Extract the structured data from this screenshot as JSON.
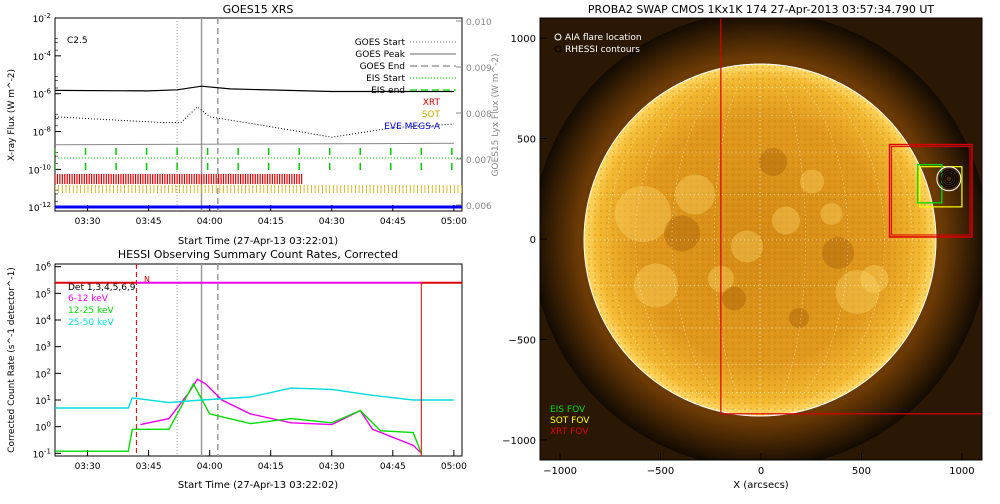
{
  "chart_data": [
    {
      "type": "line",
      "title": "GOES15 XRS",
      "xlabel": "Start Time (27-Apr-13 03:22:01)",
      "ylabel": "X-ray Flux (W m^-2)",
      "ylabel_right": "GOES15 Lyx Flux (W m^-2)",
      "x_ticks": [
        "03:30",
        "03:45",
        "04:00",
        "04:15",
        "04:30",
        "04:45",
        "05:00"
      ],
      "y_ticks": [
        "10^-12",
        "10^-10",
        "10^-8",
        "10^-6",
        "10^-4",
        "10^-2"
      ],
      "y_ticks_right": [
        "0.006",
        "0.007",
        "0.008",
        "0.009",
        "0.010"
      ],
      "flare_class": "C2.5",
      "legend": [
        {
          "label": "GOES Start",
          "color": "#888888",
          "style": "dotted"
        },
        {
          "label": "GOES Peak",
          "color": "#888888",
          "style": "solid"
        },
        {
          "label": "GOES End",
          "color": "#888888",
          "style": "dashed"
        },
        {
          "label": "EIS Start",
          "color": "#00dd00",
          "style": "dotted"
        },
        {
          "label": "EIS end",
          "color": "#00dd00",
          "style": "dashed"
        },
        {
          "label": "XRT",
          "color": "#dd0000",
          "style": "text"
        },
        {
          "label": "SOT",
          "color": "#ccaa00",
          "style": "text"
        },
        {
          "label": "EVE MEGS-A",
          "color": "#0000ee",
          "style": "text"
        }
      ],
      "events": {
        "goes_start": "03:52",
        "goes_peak": "03:58",
        "goes_end": "04:02"
      },
      "series": [
        {
          "name": "1-8 A",
          "color": "#000000",
          "points": [
            [
              "03:22",
              1.5e-06
            ],
            [
              "03:45",
              1.4e-06
            ],
            [
              "03:52",
              1.6e-06
            ],
            [
              "03:58",
              2.5e-06
            ],
            [
              "04:05",
              1.8e-06
            ],
            [
              "04:30",
              1.3e-06
            ],
            [
              "05:00",
              1.3e-06
            ]
          ]
        },
        {
          "name": "0.5-4 A",
          "color": "#000000",
          "points": [
            [
              "03:22",
              6e-08
            ],
            [
              "03:48",
              3e-08
            ],
            [
              "03:53",
              3e-08
            ],
            [
              "03:57",
              2e-07
            ],
            [
              "04:00",
              6e-08
            ],
            [
              "04:15",
              1.8e-08
            ],
            [
              "04:30",
              5e-09
            ],
            [
              "04:45",
              1.6e-08
            ],
            [
              "05:00",
              2.5e-08
            ]
          ]
        },
        {
          "name": "Lyx",
          "color": "#888888",
          "points": [
            [
              "03:22",
              2e-09
            ],
            [
              "05:00",
              2.4e-09
            ]
          ]
        }
      ]
    },
    {
      "type": "line",
      "title": "HESSI Observing Summary Count Rates, Corrected",
      "xlabel": "Start Time (27-Apr-13 03:22:02)",
      "ylabel": "Corrected Count Rate (s^-1 detector^-1)",
      "x_ticks": [
        "03:30",
        "03:45",
        "04:00",
        "04:15",
        "04:30",
        "04:45",
        "05:00"
      ],
      "y_ticks": [
        "10^-1",
        "10^0",
        "10^1",
        "10^2",
        "10^3",
        "10^4",
        "10^5",
        "10^6"
      ],
      "detectors": "Det 1,3,4,5,6,9",
      "marker_n": "N",
      "legend": [
        {
          "label": "6-12 keV",
          "color": "#ee00ee"
        },
        {
          "label": "12-25 keV",
          "color": "#00dd00"
        },
        {
          "label": "25-50 keV",
          "color": "#00dddd"
        }
      ],
      "series": [
        {
          "name": "6-12 keV",
          "color": "#ee00ee",
          "points": [
            [
              "03:43",
              1.2
            ],
            [
              "03:50",
              2
            ],
            [
              "03:55",
              20
            ],
            [
              "03:57",
              60
            ],
            [
              "03:59",
              40
            ],
            [
              "04:03",
              10
            ],
            [
              "04:10",
              3
            ],
            [
              "04:20",
              1.4
            ],
            [
              "04:30",
              1.2
            ],
            [
              "04:37",
              4
            ],
            [
              "04:40",
              0.8
            ],
            [
              "04:50",
              0.2
            ],
            [
              "04:52",
              0.1
            ]
          ]
        },
        {
          "name": "12-25 keV",
          "color": "#00dd00",
          "points": [
            [
              "03:22",
              0.12
            ],
            [
              "03:40",
              0.12
            ],
            [
              "03:41",
              0.8
            ],
            [
              "03:50",
              0.8
            ],
            [
              "03:56",
              40
            ],
            [
              "04:00",
              3
            ],
            [
              "04:10",
              1.3
            ],
            [
              "04:20",
              2
            ],
            [
              "04:30",
              1.4
            ],
            [
              "04:37",
              4
            ],
            [
              "04:42",
              0.7
            ],
            [
              "04:50",
              0.6
            ],
            [
              "04:52",
              0.1
            ]
          ]
        },
        {
          "name": "25-50 keV",
          "color": "#00dddd",
          "points": [
            [
              "03:22",
              5
            ],
            [
              "03:40",
              5
            ],
            [
              "03:41",
              12
            ],
            [
              "03:50",
              8
            ],
            [
              "03:58",
              10
            ],
            [
              "04:10",
              13
            ],
            [
              "04:20",
              28
            ],
            [
              "04:30",
              25
            ],
            [
              "04:40",
              15
            ],
            [
              "04:50",
              10
            ],
            [
              "05:00",
              10
            ]
          ]
        }
      ]
    },
    {
      "type": "scatter",
      "title": "PROBA2 SWAP CMOS 1Kx1K 174 27-Apr-2013 03:57:34.790 UT",
      "xlabel": "X (arcsecs)",
      "x_ticks": [
        "-1000",
        "-500",
        "0",
        "500",
        "1000"
      ],
      "y_ticks": [
        "-1000",
        "-500",
        "0",
        "500",
        "1000"
      ],
      "legend_top": [
        {
          "label": "AIA flare location",
          "symbol": "circle"
        },
        {
          "label": "RHESSI contours",
          "symbol": "circle"
        }
      ],
      "legend_bottom": [
        {
          "label": "EIS FOV",
          "color": "#00dd00"
        },
        {
          "label": "SOT FOV",
          "color": "#ffff00"
        },
        {
          "label": "XRT FOV",
          "color": "#dd0000"
        }
      ],
      "flare_location": {
        "x": 935,
        "y": 300
      }
    }
  ]
}
